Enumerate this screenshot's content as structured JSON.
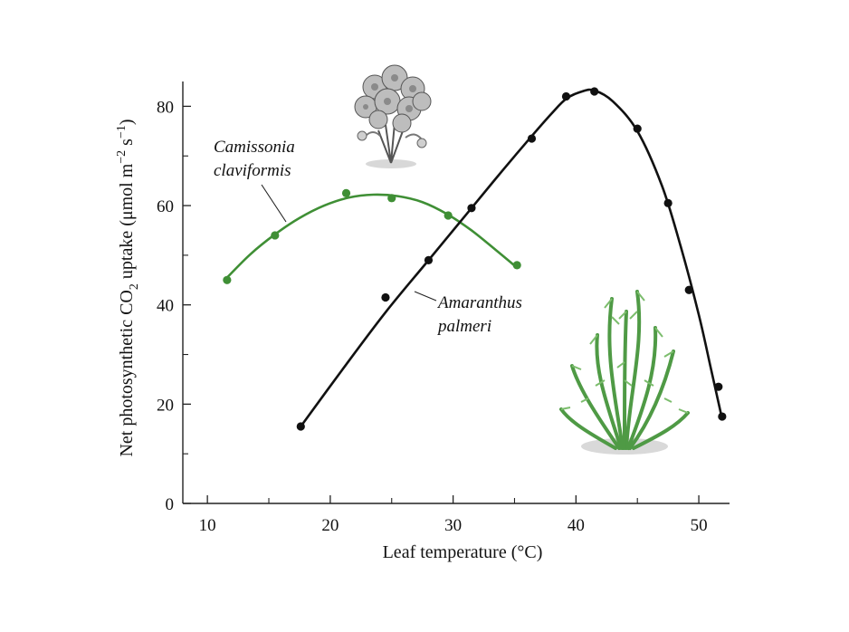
{
  "chart_data": {
    "type": "line",
    "xlabel": "Leaf temperature (°C)",
    "ylabel_parts": [
      "Net photosynthetic CO",
      "2",
      " uptake (μmol m",
      "−2",
      " s",
      "−1",
      ")"
    ],
    "xlim": [
      8,
      52.5
    ],
    "ylim": [
      0,
      85
    ],
    "xticks": [
      "10",
      "20",
      "30",
      "40",
      "50"
    ],
    "yticks": [
      "0",
      "20",
      "40",
      "60",
      "80"
    ],
    "colors": {
      "camissonia": "#3f8f35",
      "amaranthus": "#111111",
      "axis": "#222222"
    },
    "series": [
      {
        "name": "Camissonia claviformis",
        "label_lines": [
          "Camissonia",
          "claviformis"
        ],
        "color": "#3f8f35",
        "x": [
          11.6,
          15.5,
          21.3,
          25.0,
          29.6,
          35.2
        ],
        "y": [
          45,
          54,
          62.5,
          61.5,
          58,
          48
        ],
        "curve_x": [
          11.6,
          13.5,
          15.5,
          17.5,
          19.5,
          21.5,
          23.5,
          25.5,
          27.5,
          29.5,
          31.5,
          33.5,
          35.2
        ],
        "curve_y": [
          45.5,
          50.2,
          54.2,
          57.5,
          60.0,
          61.6,
          62.2,
          61.9,
          60.7,
          58.3,
          55.0,
          51.0,
          47.5
        ]
      },
      {
        "name": "Amaranthus palmeri",
        "label_lines": [
          "Amaranthus",
          "palmeri"
        ],
        "color": "#111111",
        "x": [
          17.6,
          24.5,
          28.0,
          31.5,
          36.4,
          39.2,
          41.5,
          45.0,
          47.5,
          49.2,
          51.6,
          51.9
        ],
        "y": [
          15.5,
          41.5,
          49,
          59.5,
          73.5,
          82,
          83,
          75.5,
          60.5,
          43,
          23.5,
          17.5
        ],
        "curve_x": [
          17.6,
          21.0,
          24.5,
          28.0,
          31.5,
          34.0,
          36.4,
          38.0,
          39.2,
          40.5,
          41.5,
          43.0,
          45.0,
          47.0,
          48.5,
          50.0,
          51.0,
          51.9
        ],
        "curve_y": [
          15.5,
          27.0,
          38.5,
          49.0,
          59.5,
          67.0,
          74.0,
          78.5,
          81.5,
          83.0,
          83.2,
          81.0,
          75.0,
          64.0,
          52.0,
          38.0,
          27.0,
          17.0
        ]
      }
    ]
  },
  "illustrations": {
    "flower": "camissonia-flower-cluster-icon",
    "shrub": "amaranthus-shrub-icon"
  }
}
